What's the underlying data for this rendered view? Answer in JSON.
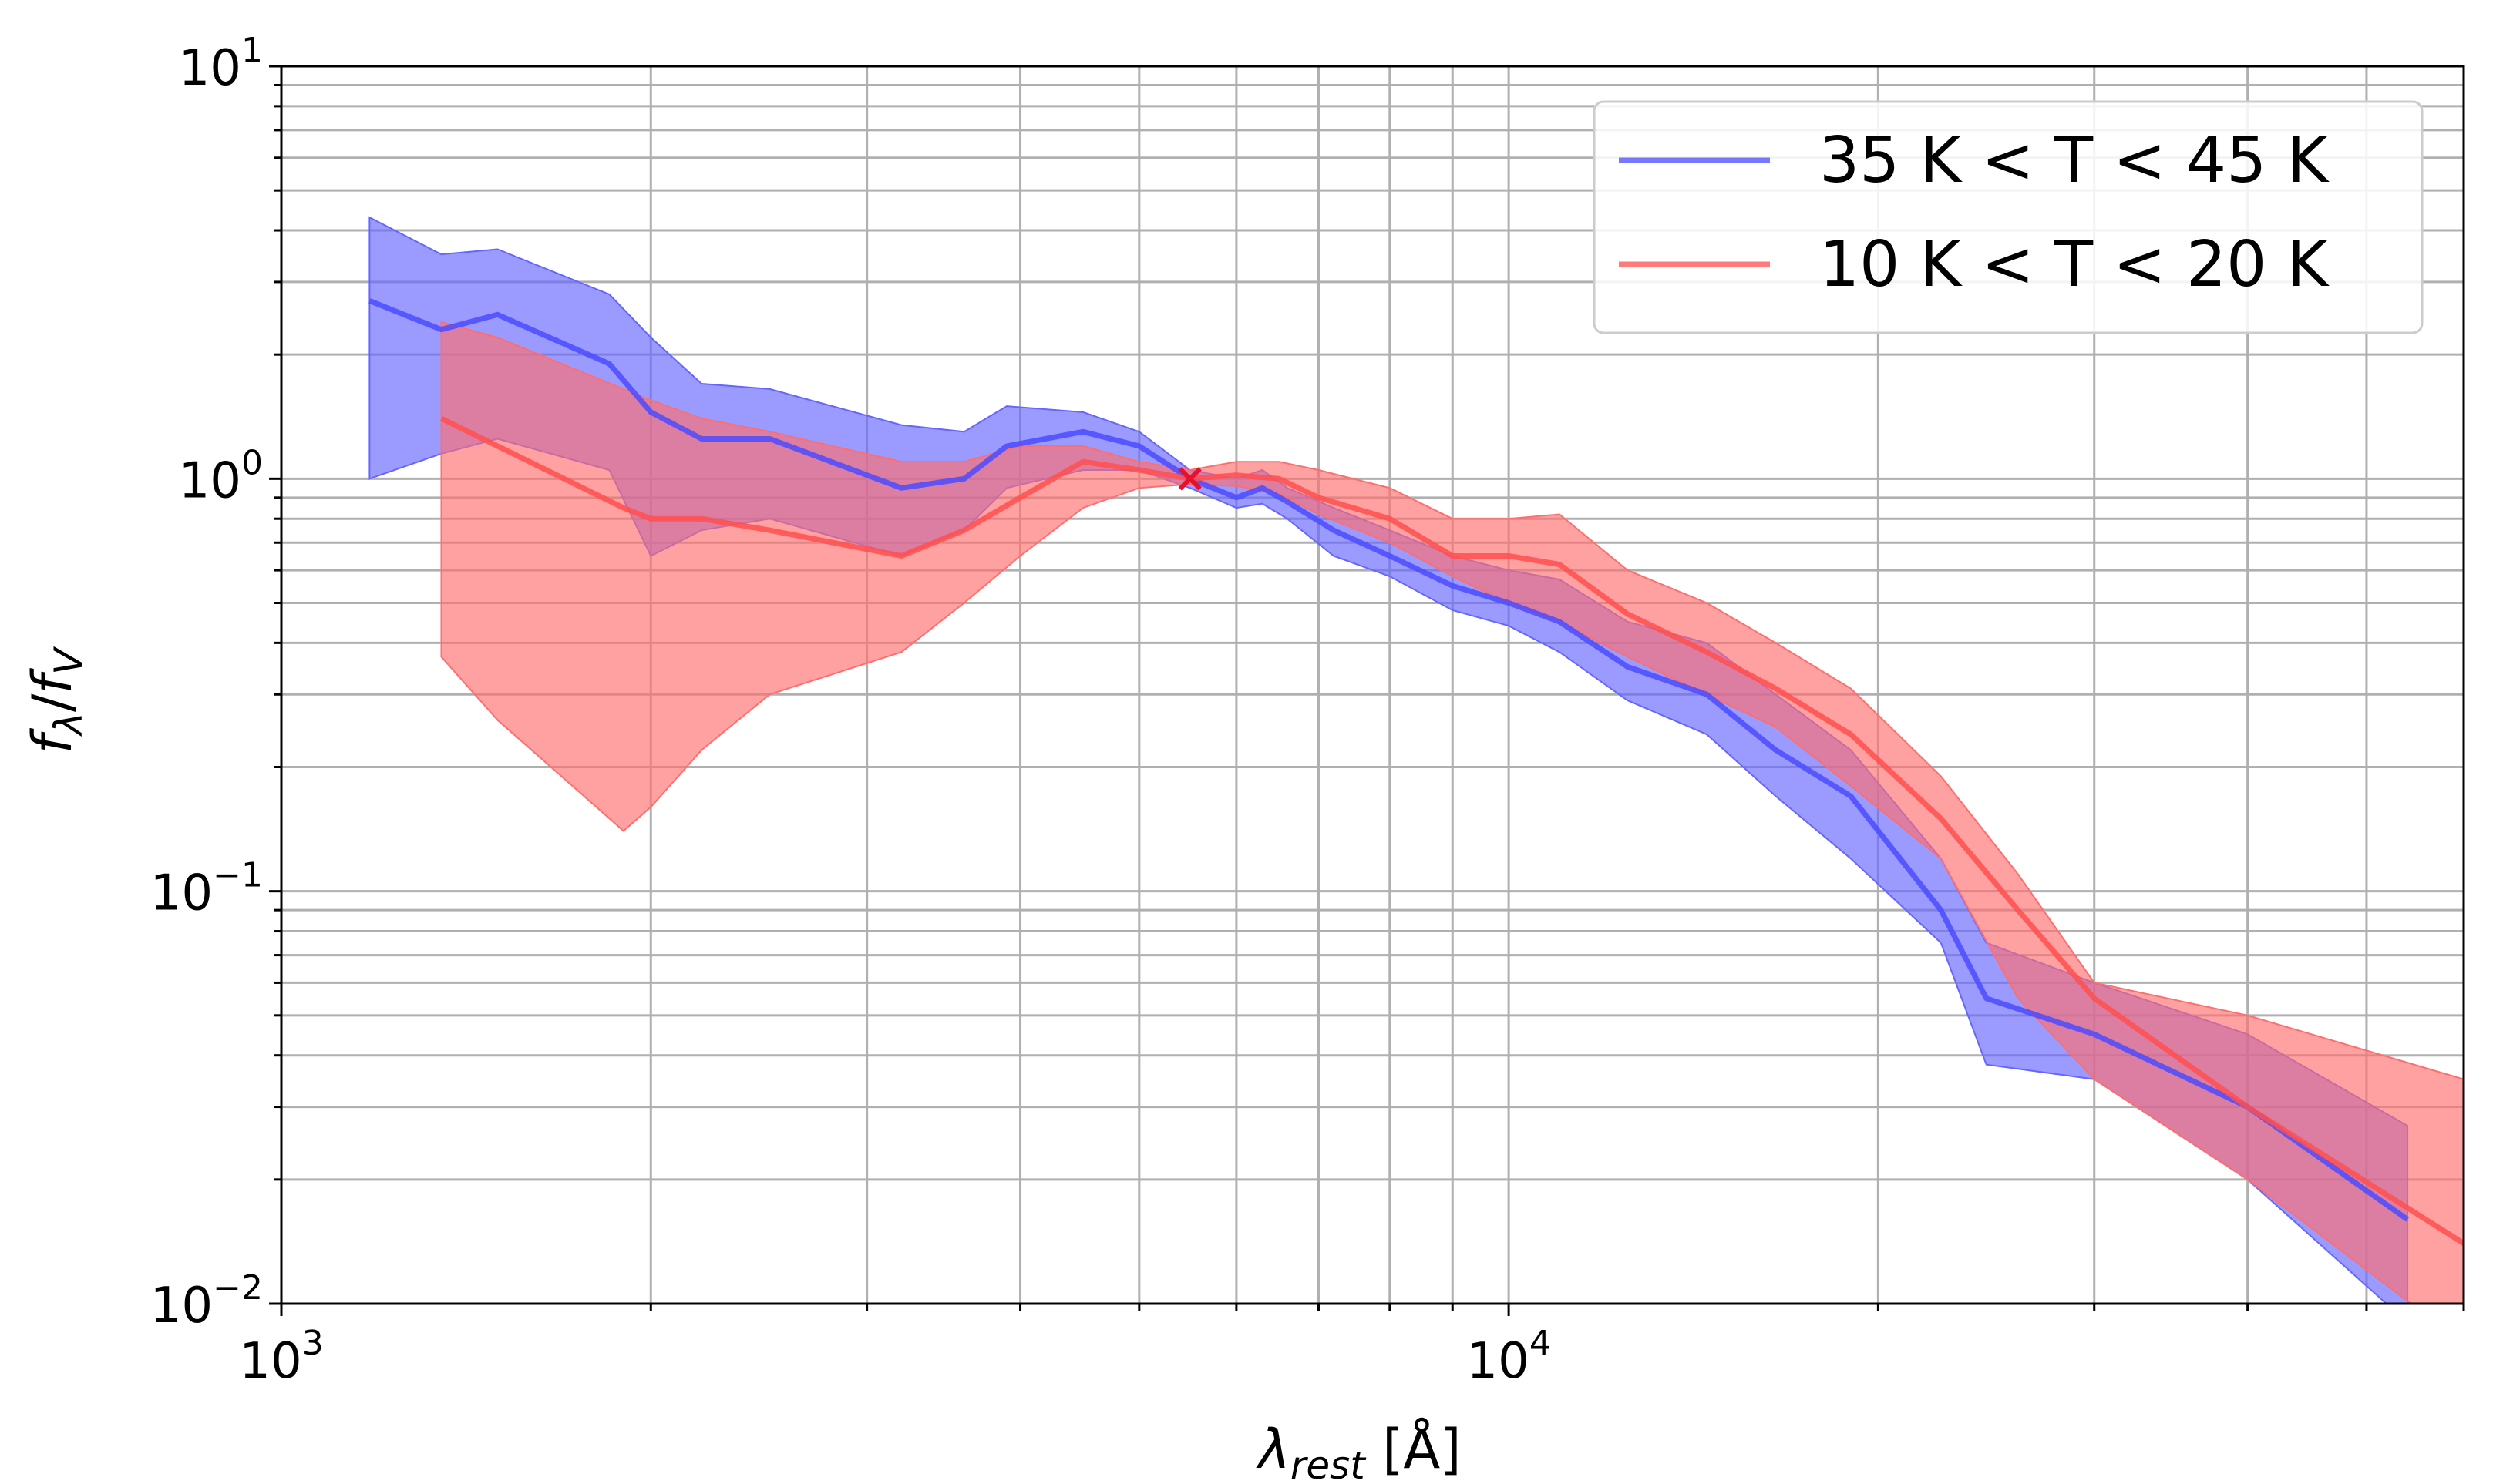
{
  "chart_data": {
    "type": "line",
    "xscale": "log",
    "yscale": "log",
    "xlim": [
      1000,
      60000
    ],
    "ylim": [
      0.01,
      10
    ],
    "xlabel": "λrest [Å]",
    "ylabel": "fλ/fV",
    "x_ticks": [
      {
        "value": 1000,
        "base": "10",
        "exp": "3"
      },
      {
        "value": 10000,
        "base": "10",
        "exp": "4"
      }
    ],
    "y_ticks": [
      {
        "value": 10,
        "base": "10",
        "exp": "1"
      },
      {
        "value": 1,
        "base": "10",
        "exp": "0"
      },
      {
        "value": 0.1,
        "base": "10",
        "exp": "−1"
      },
      {
        "value": 0.01,
        "base": "10",
        "exp": "−2"
      }
    ],
    "grid": true,
    "legend_position": "top-right",
    "normalization_point": {
      "x": 5500,
      "y": 1.0,
      "marker": "x",
      "color": "#e8102a"
    },
    "series": [
      {
        "name": "35 K < T < 45 K",
        "color": "#4b4bff",
        "band_color": "#6666ff",
        "x": [
          1180,
          1350,
          1500,
          1850,
          2000,
          2200,
          2500,
          3200,
          3600,
          3900,
          4500,
          5000,
          5500,
          6000,
          6300,
          6600,
          7200,
          8000,
          9000,
          10000,
          11000,
          12500,
          14500,
          16500,
          19000,
          22500,
          24500,
          30000,
          40000,
          54000
        ],
        "y": [
          2.7,
          2.3,
          2.5,
          1.9,
          1.45,
          1.25,
          1.25,
          0.95,
          1.0,
          1.2,
          1.3,
          1.2,
          1.0,
          0.9,
          0.95,
          0.88,
          0.75,
          0.65,
          0.55,
          0.5,
          0.45,
          0.35,
          0.3,
          0.22,
          0.17,
          0.09,
          0.055,
          0.045,
          0.03,
          0.016
        ],
        "upper": [
          4.3,
          3.5,
          3.6,
          2.8,
          2.2,
          1.7,
          1.65,
          1.35,
          1.3,
          1.5,
          1.45,
          1.3,
          1.05,
          1.0,
          1.05,
          0.95,
          0.85,
          0.75,
          0.65,
          0.6,
          0.57,
          0.45,
          0.4,
          0.3,
          0.22,
          0.12,
          0.075,
          0.06,
          0.045,
          0.027
        ],
        "lower": [
          1.0,
          1.15,
          1.25,
          1.05,
          0.65,
          0.75,
          0.8,
          0.65,
          0.75,
          0.95,
          1.05,
          1.05,
          0.95,
          0.85,
          0.87,
          0.8,
          0.65,
          0.58,
          0.48,
          0.44,
          0.38,
          0.29,
          0.24,
          0.17,
          0.12,
          0.075,
          0.038,
          0.035,
          0.02,
          0.009
        ]
      },
      {
        "name": "10 K < T < 20 K",
        "color": "#ff4f4f",
        "band_color": "#ff6e6e",
        "x": [
          1350,
          1500,
          1900,
          2000,
          2200,
          2500,
          3200,
          3600,
          4000,
          4500,
          5000,
          5500,
          6000,
          6500,
          7000,
          8000,
          9000,
          10000,
          11000,
          12500,
          14500,
          16500,
          19000,
          22500,
          26000,
          30000,
          40000,
          60000
        ],
        "y": [
          1.4,
          1.2,
          0.85,
          0.8,
          0.8,
          0.75,
          0.65,
          0.75,
          0.9,
          1.1,
          1.05,
          1.0,
          1.02,
          1.0,
          0.9,
          0.8,
          0.65,
          0.65,
          0.62,
          0.47,
          0.38,
          0.31,
          0.24,
          0.15,
          0.09,
          0.055,
          0.03,
          0.014
        ],
        "upper": [
          2.4,
          2.2,
          1.65,
          1.55,
          1.4,
          1.3,
          1.1,
          1.1,
          1.2,
          1.2,
          1.1,
          1.05,
          1.1,
          1.1,
          1.05,
          0.95,
          0.8,
          0.8,
          0.82,
          0.6,
          0.5,
          0.4,
          0.31,
          0.19,
          0.11,
          0.06,
          0.05,
          0.035
        ],
        "lower": [
          0.37,
          0.26,
          0.14,
          0.16,
          0.22,
          0.3,
          0.38,
          0.5,
          0.65,
          0.85,
          0.95,
          0.97,
          0.96,
          0.92,
          0.82,
          0.7,
          0.58,
          0.5,
          0.45,
          0.37,
          0.3,
          0.25,
          0.18,
          0.12,
          0.055,
          0.035,
          0.02,
          0.008
        ]
      }
    ]
  }
}
